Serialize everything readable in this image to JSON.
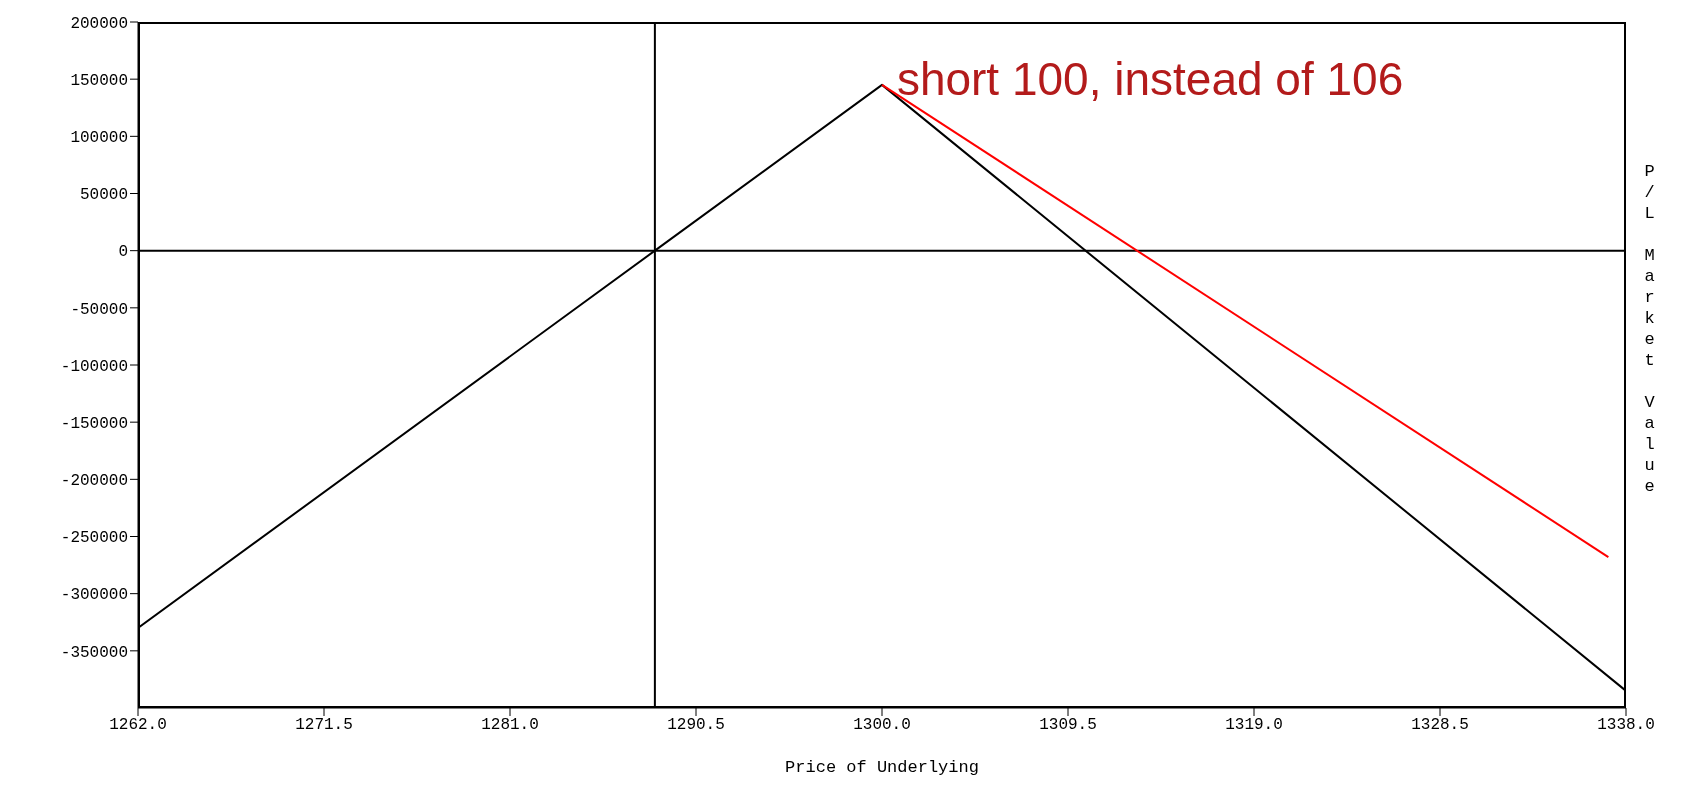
{
  "chart_data": {
    "type": "line",
    "xlabel": "Price of Underlying",
    "ylabel": "P/L Market Value",
    "annotations": [
      "short 100, instead of 106"
    ],
    "series": [
      {
        "color": "#000000",
        "x": [
          1262,
          1288.4,
          1300,
          1338
        ],
        "values": [
          -330000,
          0,
          145000,
          -385000
        ]
      },
      {
        "color": "#ff0000",
        "x": [
          1300,
          1337.1
        ],
        "values": [
          145000,
          -268000
        ]
      }
    ],
    "xlim": [
      1262,
      1338
    ],
    "xticks": [
      {
        "value": 1262,
        "label": "1262.0"
      },
      {
        "value": 1271.5,
        "label": "1271.5"
      },
      {
        "value": 1281,
        "label": "1281.0"
      },
      {
        "value": 1290.5,
        "label": "1290.5"
      },
      {
        "value": 1300,
        "label": "1300.0"
      },
      {
        "value": 1309.5,
        "label": "1309.5"
      },
      {
        "value": 1319,
        "label": "1319.0"
      },
      {
        "value": 1328.5,
        "label": "1328.5"
      },
      {
        "value": 1338,
        "label": "1338.0"
      }
    ],
    "ylim": [
      -400000,
      200000
    ],
    "yticks": [
      200000,
      150000,
      100000,
      50000,
      0,
      -50000,
      -100000,
      -150000,
      -200000,
      -250000,
      -300000,
      -350000
    ],
    "ref_lines": [
      {
        "axis": "x",
        "value": 1288.4,
        "color": "#000000"
      },
      {
        "axis": "y",
        "value": 0,
        "color": "#000000"
      }
    ],
    "marker": "none",
    "line_style": "solid"
  }
}
